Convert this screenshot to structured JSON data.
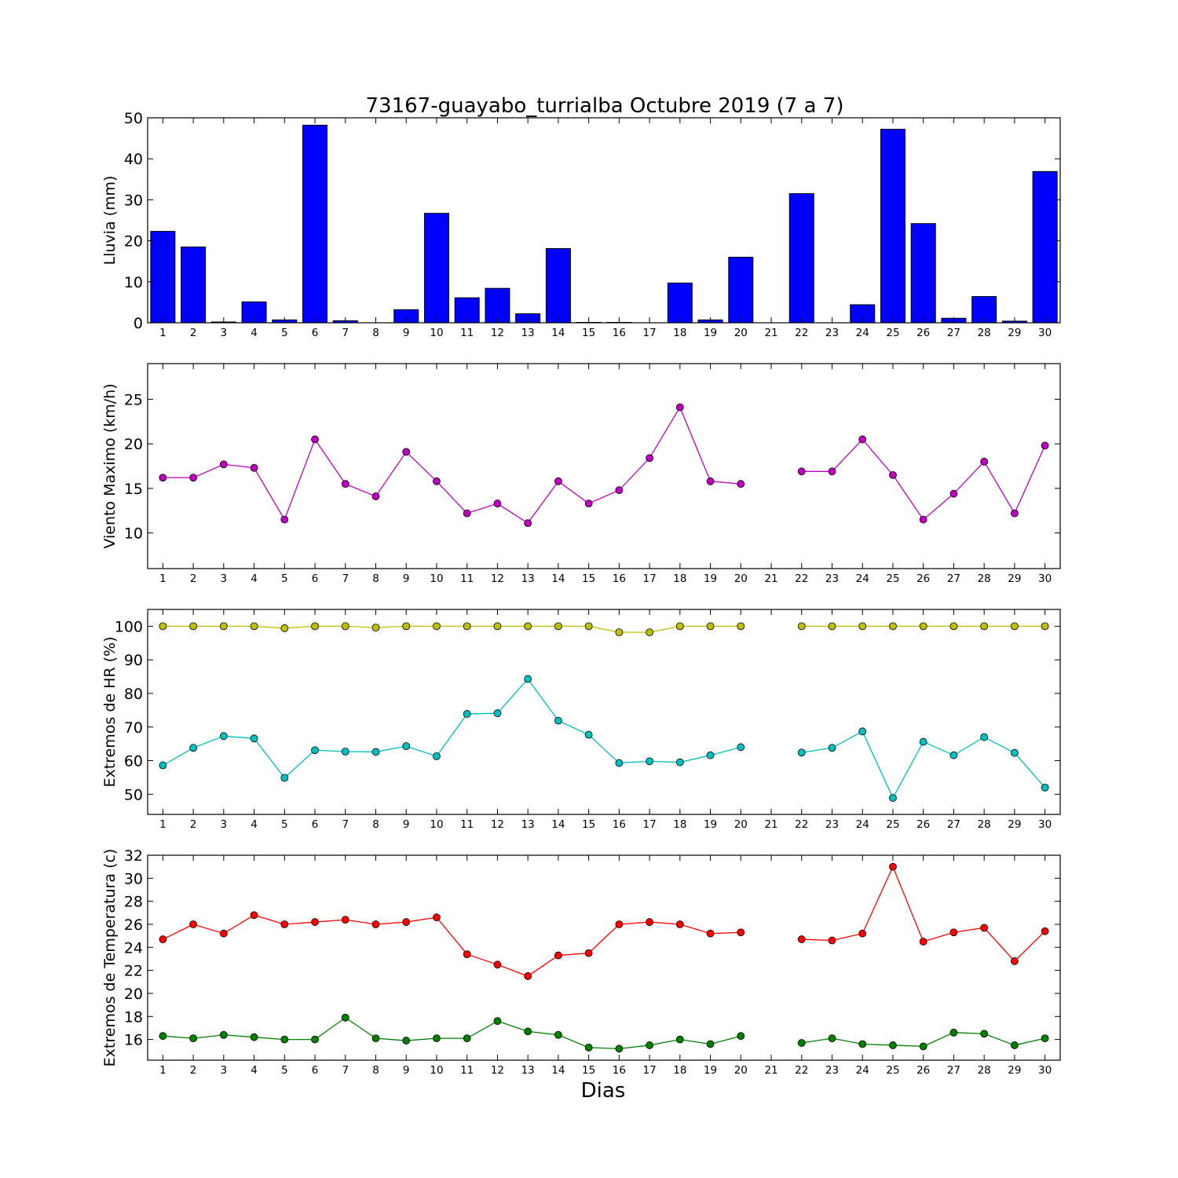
{
  "chart_data": {
    "title": "73167-guayabo_turrialba Octubre 2019  (7 a 7)",
    "xlabel": "Dias",
    "x": [
      1,
      2,
      3,
      4,
      5,
      6,
      7,
      8,
      9,
      10,
      11,
      12,
      13,
      14,
      15,
      16,
      17,
      18,
      19,
      20,
      21,
      22,
      23,
      24,
      25,
      26,
      27,
      28,
      29,
      30
    ],
    "xlim": [
      0.5,
      30.5
    ],
    "panels": [
      {
        "id": "rain",
        "type": "bar",
        "ylabel": "Lluvia (mm)",
        "ylim": [
          0,
          50
        ],
        "yticks": [
          0,
          10,
          20,
          30,
          40,
          50
        ],
        "series": [
          {
            "color": "#0000ff",
            "values": [
              22.3,
              18.5,
              0.2,
              5.1,
              0.7,
              48.2,
              0.5,
              0,
              3.2,
              26.7,
              6.1,
              8.4,
              2.2,
              18.1,
              0.1,
              0.1,
              0,
              9.7,
              0.7,
              16.0,
              null,
              31.5,
              0,
              4.4,
              47.2,
              24.2,
              1.1,
              6.4,
              0.4,
              36.9
            ]
          }
        ]
      },
      {
        "id": "wind",
        "type": "line",
        "ylabel": "Viento Maximo (km/h)",
        "ylim": [
          6,
          29
        ],
        "yticks": [
          10,
          15,
          20,
          25
        ],
        "series": [
          {
            "color": "#bf00bf",
            "values": [
              16.2,
              16.2,
              17.7,
              17.3,
              11.5,
              20.5,
              15.5,
              14.1,
              19.1,
              15.8,
              12.2,
              13.3,
              11.1,
              15.8,
              13.3,
              14.8,
              18.4,
              24.1,
              15.8,
              15.5,
              null,
              16.9,
              16.9,
              20.5,
              16.5,
              11.5,
              14.4,
              18.0,
              12.2,
              19.8
            ]
          }
        ]
      },
      {
        "id": "humidity",
        "type": "line",
        "ylabel": "Extremos de HR (%)",
        "ylim": [
          44,
          105
        ],
        "yticks": [
          50,
          60,
          70,
          80,
          90,
          100
        ],
        "series": [
          {
            "color": "#bfbf00",
            "values": [
              100,
              100,
              100,
              100,
              99.4,
              100,
              100,
              99.6,
              100,
              100,
              100,
              100,
              100,
              100,
              100,
              98.2,
              98.2,
              100,
              100,
              100,
              null,
              100,
              100,
              100,
              100,
              100,
              100,
              100,
              100,
              100
            ]
          },
          {
            "color": "#00bfbf",
            "values": [
              58.6,
              63.8,
              67.3,
              66.6,
              54.9,
              63.1,
              62.7,
              62.6,
              64.3,
              61.3,
              73.9,
              74.1,
              84.3,
              71.9,
              67.7,
              59.3,
              59.8,
              59.5,
              61.6,
              64.0,
              null,
              62.4,
              63.8,
              68.7,
              48.9,
              65.6,
              61.6,
              67.0,
              62.3,
              52.0
            ]
          }
        ]
      },
      {
        "id": "temperature",
        "type": "line",
        "ylabel": "Extremos de Temperatura (c)",
        "ylim": [
          14.2,
          32
        ],
        "yticks": [
          16,
          18,
          20,
          22,
          24,
          26,
          28,
          30,
          32
        ],
        "series": [
          {
            "color": "#ff0000",
            "values": [
              24.7,
              26.0,
              25.2,
              26.8,
              26.0,
              26.2,
              26.4,
              26.0,
              26.2,
              26.6,
              23.4,
              22.5,
              21.5,
              23.3,
              23.5,
              26.0,
              26.2,
              26.0,
              25.2,
              25.3,
              null,
              24.7,
              24.6,
              25.2,
              31.0,
              24.5,
              25.3,
              25.7,
              22.8,
              25.4
            ]
          },
          {
            "color": "#008000",
            "values": [
              16.3,
              16.1,
              16.4,
              16.2,
              16.0,
              16.0,
              17.9,
              16.1,
              15.9,
              16.1,
              16.1,
              17.6,
              16.7,
              16.4,
              15.3,
              15.2,
              15.5,
              16.0,
              15.6,
              16.3,
              null,
              15.7,
              16.1,
              15.6,
              15.5,
              15.4,
              16.6,
              16.5,
              15.5,
              16.1
            ]
          }
        ]
      }
    ]
  }
}
